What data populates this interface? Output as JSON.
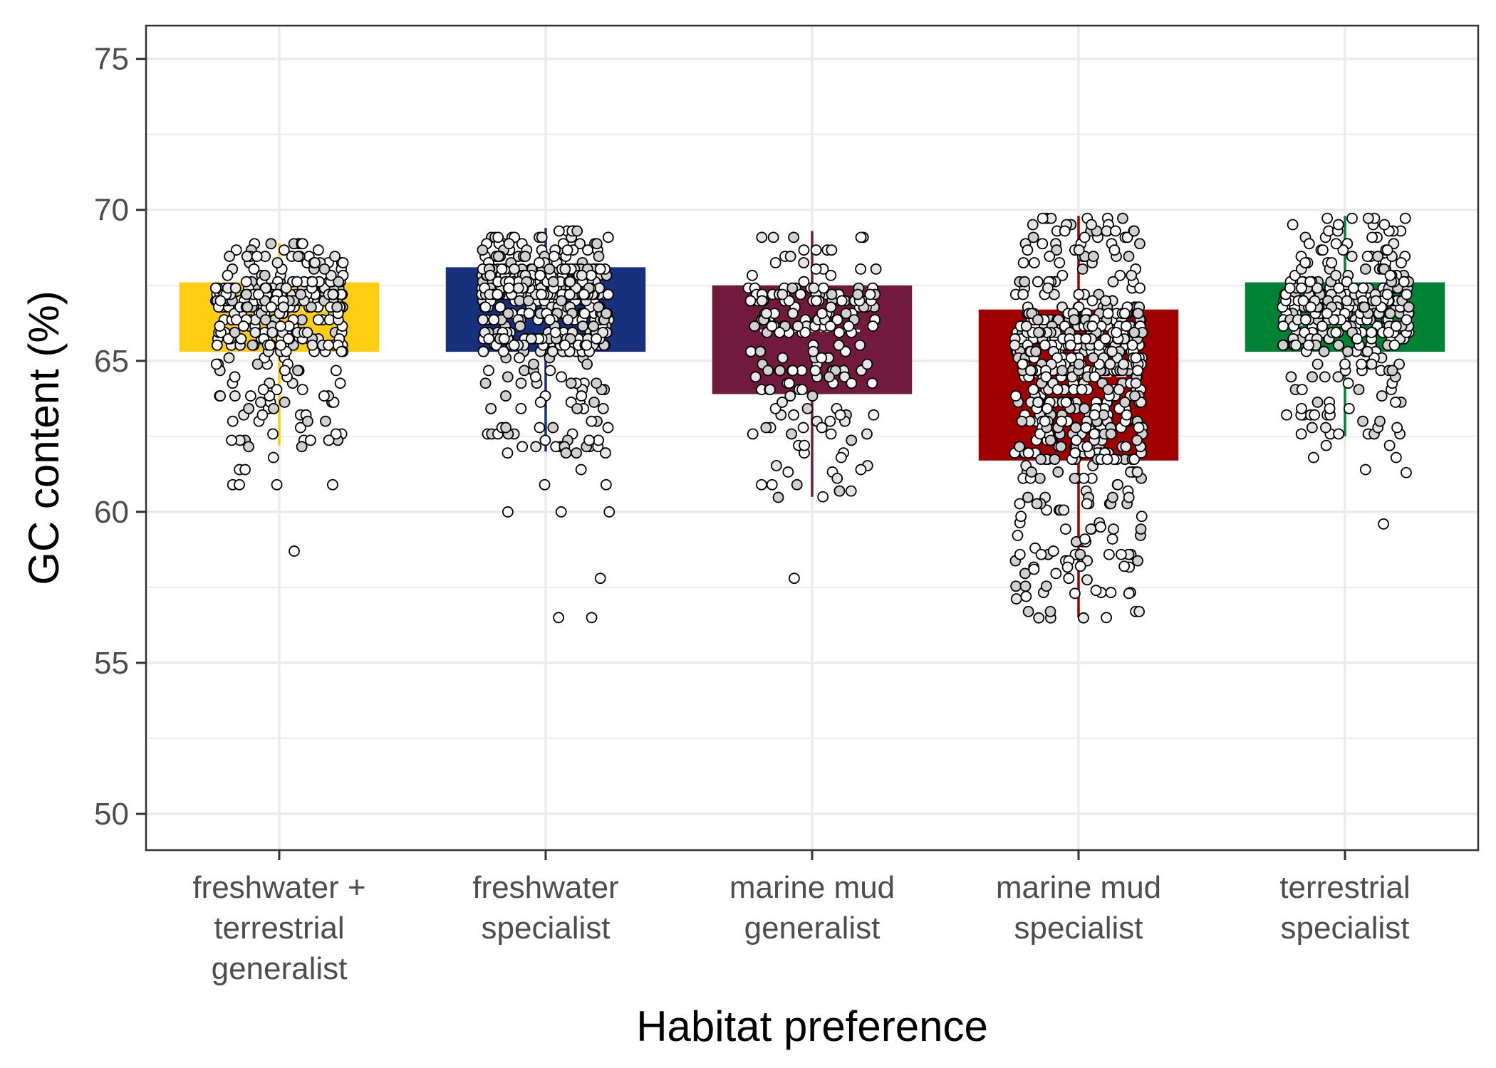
{
  "chart_data": {
    "type": "bar",
    "title": "",
    "xlabel": "Habitat preference",
    "ylabel": "GC content (%)",
    "ylim": [
      48.8,
      76.1
    ],
    "yticks": [
      50,
      55,
      60,
      65,
      70,
      75
    ],
    "grid": true,
    "categories": [
      [
        "freshwater +",
        "terrestrial",
        "generalist"
      ],
      [
        "freshwater",
        "specialist"
      ],
      [
        "marine mud",
        "generalist"
      ],
      [
        "marine mud",
        "specialist"
      ],
      [
        "terrestrial",
        "specialist"
      ]
    ],
    "boxes": [
      {
        "q1": 65.3,
        "median": 66.7,
        "q3": 67.6,
        "whisker_low": 62.2,
        "whisker_high": 68.9,
        "color": "#FFCD11"
      },
      {
        "q1": 65.3,
        "median": 67.1,
        "q3": 68.1,
        "whisker_low": 62.0,
        "whisker_high": 69.4,
        "color": "#18317D"
      },
      {
        "q1": 63.9,
        "median": 66.0,
        "q3": 67.5,
        "whisker_low": 60.5,
        "whisker_high": 69.3,
        "color": "#711A3B"
      },
      {
        "q1": 61.7,
        "median": 64.5,
        "q3": 66.7,
        "whisker_low": 56.5,
        "whisker_high": 69.8,
        "color": "#A00000"
      },
      {
        "q1": 65.3,
        "median": 66.2,
        "q3": 67.6,
        "whisker_low": 62.5,
        "whisker_high": 69.8,
        "color": "#008234"
      }
    ],
    "points": [
      {
        "count": 380,
        "outliers": [
          58.7,
          60.9,
          60.9,
          61.4,
          61.4,
          61.8,
          60.9,
          60.9
        ],
        "jitter_seed": 11
      },
      {
        "count": 520,
        "outliers": [
          60.0,
          56.5,
          56.5,
          57.8,
          60.0,
          60.0,
          60.9,
          60.9,
          61.4
        ],
        "jitter_seed": 23
      },
      {
        "count": 190,
        "outliers": [
          57.8,
          60.5,
          60.9,
          60.9,
          61.4,
          61.8,
          62.2,
          62.2
        ],
        "jitter_seed": 37
      },
      {
        "count": 620,
        "outliers": [
          56.5,
          57.3,
          57.3,
          57.8,
          58.2,
          58.2,
          58.1,
          58.7,
          59.1,
          59.1,
          59.5,
          57.4,
          57.2
        ],
        "jitter_seed": 41
      },
      {
        "count": 380,
        "outliers": [
          59.6,
          61.4,
          61.3,
          61.8,
          61.8,
          62.2,
          62.2
        ],
        "jitter_seed": 53
      }
    ]
  }
}
